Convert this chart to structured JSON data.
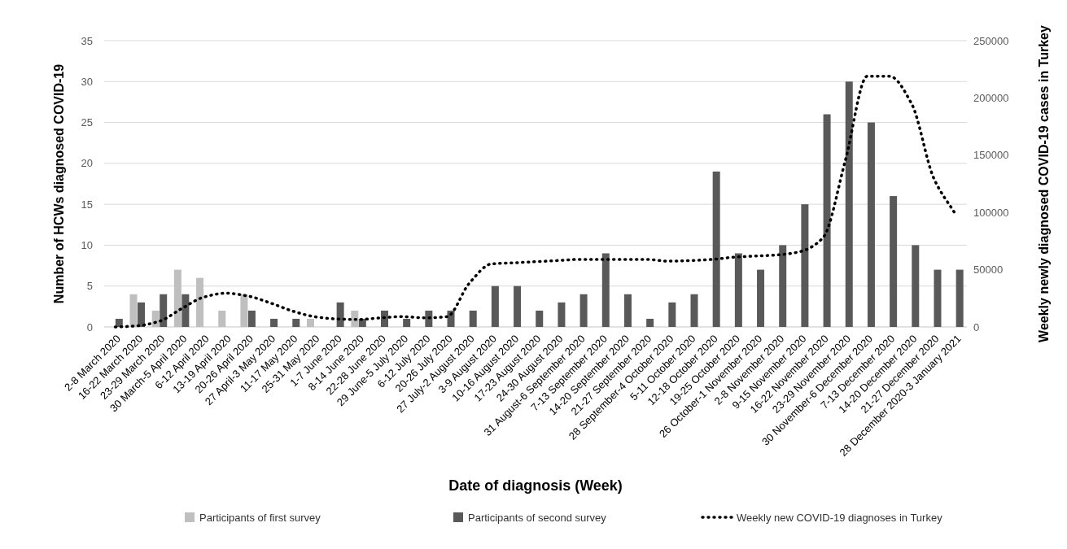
{
  "chart_data": {
    "type": "bar",
    "xlabel": "Date of diagnosis (Week)",
    "ylabel": "Number of HCWs diagnosed COVID-19",
    "y2label": "Weekly newly diagnosed COVID-19 cases in Turkey",
    "categories": [
      "2-8 March 2020",
      "16-22 March 2020",
      "23-29 March 2020",
      "30 March-5 April 2020",
      "6-12 April 2020",
      "13-19 April 2020",
      "20-26 April 2020",
      "27 April-3 May 2020",
      "11-17 May 2020",
      "25-31 May 2020",
      "1-7 June 2020",
      "8-14 June 2020",
      "22-28 June 2020",
      "29 June-5 July 2020",
      "6-12 July 2020",
      "20-26 July 2020",
      "27 July-2 August 2020",
      "3-9 August 2020",
      "10-16 August 2020",
      "17-23 August 2020",
      "24-30 August 2020",
      "31 August-6 September 2020",
      "7-13 September 2020",
      "14-20 September 2020",
      "21-27 September 2020",
      "28 September-4 October 2020",
      "5-11 October 2020",
      "12-18 October 2020",
      "19-25 October 2020",
      "26 October-1 November 2020",
      "2-8 November 2020",
      "9-15 November 2020",
      "16-22 November 2020",
      "23-29 November 2020",
      "30 November-6 December 2020",
      "7-13 December 2020",
      "14-20 December 2020",
      "21-27 December 2020",
      "28 December 2020-3 January 2021"
    ],
    "series": [
      {
        "name": "Participants of first survey",
        "color": "#bfbfbf",
        "values": [
          0,
          4,
          2,
          7,
          6,
          2,
          4,
          0,
          0,
          1,
          0,
          2,
          0,
          0,
          0,
          0,
          0,
          0,
          0,
          0,
          0,
          0,
          0,
          0,
          0,
          0,
          0,
          0,
          0,
          0,
          0,
          0,
          0,
          0,
          0,
          0,
          0,
          0,
          0
        ]
      },
      {
        "name": "Participants of second survey",
        "color": "#595959",
        "values": [
          1,
          3,
          4,
          4,
          0,
          0,
          2,
          1,
          1,
          0,
          3,
          1,
          2,
          1,
          2,
          2,
          2,
          5,
          5,
          2,
          3,
          4,
          9,
          4,
          1,
          3,
          4,
          19,
          9,
          7,
          10,
          15,
          26,
          30,
          25,
          16,
          10,
          7,
          7
        ]
      },
      {
        "name": "Weekly new COVID-19 diagnoses in Turkey",
        "type": "line",
        "axis": "y2",
        "color": "#000000",
        "line_style": "dotted",
        "values": [
          0,
          1000,
          5000,
          16000,
          26000,
          29500,
          27000,
          21000,
          14000,
          9000,
          7000,
          6500,
          8000,
          9000,
          8000,
          9000,
          38000,
          55000,
          56000,
          57000,
          58000,
          59000,
          59000,
          59000,
          59000,
          57500,
          58000,
          59000,
          61000,
          62000,
          63000,
          66000,
          78000,
          145000,
          219000,
          219000,
          195000,
          130000,
          98000
        ]
      }
    ],
    "ylim": [
      0,
      35
    ],
    "yticks": [
      0,
      5,
      10,
      15,
      20,
      25,
      30,
      35
    ],
    "y2lim": [
      0,
      250000
    ],
    "y2ticks": [
      0,
      50000,
      100000,
      150000,
      200000,
      250000
    ],
    "grid": "y",
    "legend": "bottom"
  }
}
